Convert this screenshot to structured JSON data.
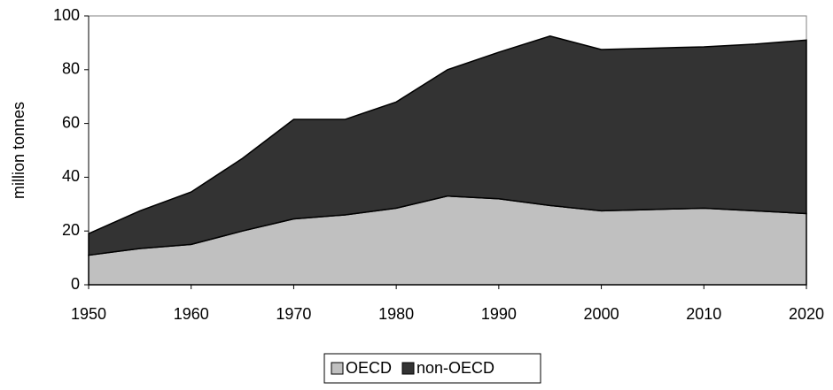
{
  "chart_data": {
    "type": "area",
    "stacked": true,
    "y_label": "million tonnes",
    "x": [
      1950,
      1955,
      1960,
      1965,
      1970,
      1975,
      1980,
      1985,
      1990,
      1995,
      2000,
      2005,
      2010,
      2015,
      2020
    ],
    "series": [
      {
        "name": "OECD",
        "color": "#c0c0c0",
        "values": [
          11,
          13.5,
          15,
          20,
          24.5,
          26,
          28.5,
          33,
          32,
          29.5,
          27.5,
          28,
          28.5,
          27.5,
          26.5
        ]
      },
      {
        "name": "non-OECD",
        "color": "#333333",
        "values": [
          8,
          14,
          19.5,
          27,
          37,
          35.5,
          39.5,
          47,
          54.5,
          63,
          60,
          60,
          60,
          62,
          64.5
        ]
      }
    ],
    "xlim": [
      1950,
      2020
    ],
    "xticks": [
      1950,
      1960,
      1970,
      1980,
      1990,
      2000,
      2010,
      2020
    ],
    "ylim": [
      0,
      100
    ],
    "yticks": [
      0,
      20,
      40,
      60,
      80,
      100
    ],
    "legend": "bottom"
  }
}
